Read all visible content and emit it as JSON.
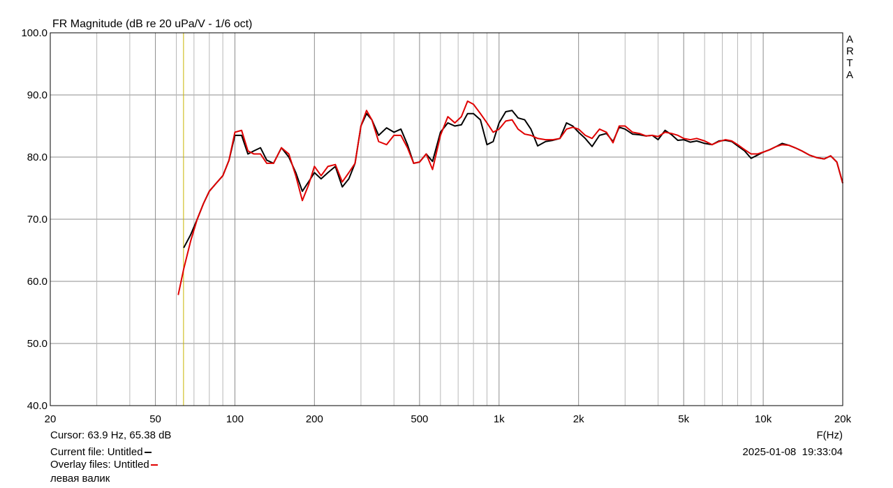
{
  "chart_data": {
    "type": "line",
    "title": "FR Magnitude (dB re 20 uPa/V - 1/6 oct)",
    "watermark": "ARTA",
    "x_label": "F(Hz)",
    "log_x": true,
    "grid": true,
    "xlim": [
      20,
      20000
    ],
    "ylim": [
      40,
      100
    ],
    "xticks": [
      20,
      50,
      100,
      200,
      500,
      {
        "value": 1000,
        "label": "1k"
      },
      {
        "value": 2000,
        "label": "2k"
      },
      {
        "value": 5000,
        "label": "5k"
      },
      {
        "value": 10000,
        "label": "10k"
      },
      {
        "value": 20000,
        "label": "20k"
      }
    ],
    "xminor_ticks": [
      30,
      40,
      60,
      70,
      80,
      90,
      300,
      400,
      600,
      700,
      800,
      900,
      3000,
      4000,
      6000,
      7000,
      8000,
      9000
    ],
    "yticks": [
      {
        "value": 40,
        "label": "40.0"
      },
      {
        "value": 50,
        "label": "50.0"
      },
      {
        "value": 60,
        "label": "60.0"
      },
      {
        "value": 70,
        "label": "70.0"
      },
      {
        "value": 80,
        "label": "80.0"
      },
      {
        "value": 90,
        "label": "90.0"
      },
      {
        "value": 100,
        "label": "100.0"
      }
    ],
    "cursor_x": 63.9,
    "cursor_color": "#c8b400",
    "cursor_text": "Cursor: 63.9 Hz, 65.38 dB",
    "timestamp": "2025-01-08  19:33:04",
    "note": "левая валик",
    "x": [
      61,
      64,
      68,
      72,
      76,
      80,
      85,
      90,
      95,
      100,
      106,
      112,
      118,
      125,
      132,
      140,
      150,
      160,
      170,
      180,
      190,
      200,
      212,
      225,
      240,
      255,
      270,
      285,
      300,
      315,
      330,
      350,
      375,
      400,
      425,
      450,
      475,
      500,
      530,
      560,
      600,
      640,
      680,
      720,
      760,
      800,
      850,
      900,
      950,
      1000,
      1060,
      1120,
      1180,
      1250,
      1320,
      1400,
      1500,
      1600,
      1700,
      1800,
      1900,
      2000,
      2120,
      2250,
      2400,
      2550,
      2700,
      2850,
      3000,
      3200,
      3400,
      3600,
      3800,
      4000,
      4250,
      4500,
      4750,
      5000,
      5300,
      5600,
      6000,
      6400,
      6800,
      7200,
      7600,
      8000,
      8500,
      9000,
      9500,
      10000,
      10600,
      11200,
      11800,
      12500,
      13200,
      14000,
      15000,
      16000,
      17000,
      18000,
      19000,
      20000
    ],
    "series": [
      {
        "name": "Current file: Untitled",
        "color": "#000000",
        "values": [
          null,
          65.4,
          67.5,
          70,
          72.5,
          74.5,
          75.8,
          77,
          79.5,
          83.5,
          83.5,
          80.5,
          81,
          81.5,
          79.5,
          79,
          81.5,
          80,
          77.5,
          74.5,
          76,
          77.5,
          76.5,
          77.5,
          78.5,
          75.2,
          76.5,
          79,
          85,
          87,
          86,
          83.5,
          84.7,
          84,
          84.5,
          82,
          79,
          79.2,
          80.5,
          79.3,
          84,
          85.5,
          85,
          85.2,
          87,
          87,
          86,
          82,
          82.5,
          85.5,
          87.3,
          87.5,
          86.3,
          86,
          84.5,
          81.8,
          82.5,
          82.7,
          83,
          85.5,
          85,
          84,
          83,
          81.7,
          83.5,
          83.8,
          82.5,
          84.8,
          84.5,
          83.7,
          83.6,
          83.4,
          83.5,
          82.8,
          84.3,
          83.6,
          82.7,
          82.8,
          82.4,
          82.6,
          82.2,
          82,
          82.6,
          82.7,
          82.5,
          81.8,
          81,
          79.8,
          80.3,
          80.8,
          81.2,
          81.7,
          82.2,
          81.9,
          81.5,
          81,
          80.3,
          79.9,
          79.7,
          80.2,
          79.2,
          75.8
        ]
      },
      {
        "name": "Overlay files: Untitled",
        "color": "#e00000",
        "values": [
          57.8,
          62,
          66.5,
          70,
          72.5,
          74.5,
          75.8,
          77,
          79.5,
          84,
          84.3,
          81,
          80.5,
          80.5,
          79,
          79,
          81.5,
          80.5,
          77,
          73,
          75.5,
          78.5,
          77,
          78.5,
          78.8,
          76,
          77.5,
          79,
          85,
          87.5,
          86,
          82.5,
          82,
          83.5,
          83.5,
          81.5,
          79,
          79.2,
          80.5,
          78,
          83.5,
          86.5,
          85.5,
          86.5,
          89,
          88.5,
          87,
          85.5,
          84,
          84.5,
          85.8,
          86,
          84.5,
          83.7,
          83.5,
          83,
          82.8,
          82.8,
          83,
          84.5,
          84.8,
          84.5,
          83.5,
          83,
          84.5,
          84,
          82.3,
          85,
          85,
          84,
          83.8,
          83.4,
          83.5,
          83.3,
          84,
          83.8,
          83.5,
          83,
          82.8,
          83,
          82.6,
          82,
          82.5,
          82.8,
          82.6,
          82,
          81.2,
          80.5,
          80.5,
          80.8,
          81.2,
          81.7,
          82,
          81.9,
          81.5,
          81,
          80.3,
          79.9,
          79.7,
          80.2,
          79.2,
          75.8
        ]
      }
    ]
  }
}
